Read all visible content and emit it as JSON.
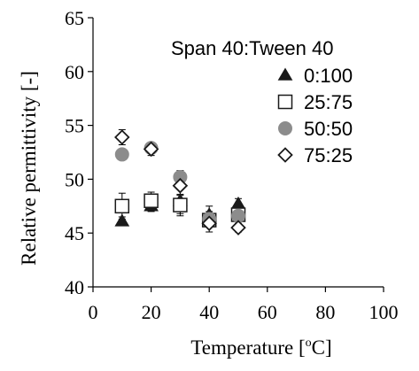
{
  "chart_data": {
    "type": "scatter",
    "xlabel_main": "Temperature [",
    "xlabel_sup": "o",
    "xlabel_end": "C]",
    "ylabel": "Relative permittivity [-]",
    "xlim": [
      0,
      100
    ],
    "ylim": [
      40,
      65
    ],
    "x_ticks": [
      "0",
      "20",
      "40",
      "60",
      "80",
      "100"
    ],
    "y_ticks": [
      "40",
      "45",
      "50",
      "55",
      "60",
      "65"
    ],
    "grid": false,
    "legend_position": "top-right",
    "legend_title": "Span 40:Tween 40",
    "series": [
      {
        "name": "0:100",
        "marker": "triangle",
        "color": "#1a1a1a",
        "x": [
          10,
          20,
          30,
          40,
          50
        ],
        "y": [
          46.1,
          47.5,
          48.0,
          46.7,
          47.7
        ],
        "err": [
          0.4,
          0.5,
          1.2,
          0.8,
          0.5
        ]
      },
      {
        "name": "25:75",
        "marker": "square-open",
        "color": "#1a1a1a",
        "x": [
          10,
          20,
          30,
          40,
          50
        ],
        "y": [
          47.5,
          48.0,
          47.6,
          46.2,
          46.7
        ],
        "err": [
          1.2,
          0.8,
          1.0,
          0.6,
          0.8
        ]
      },
      {
        "name": "50:50",
        "marker": "circle",
        "color": "#8c8c8c",
        "x": [
          10,
          20,
          30,
          40,
          50
        ],
        "y": [
          52.3,
          52.9,
          50.2,
          46.3,
          46.6
        ],
        "err": [
          0.5,
          0.5,
          0.6,
          0.7,
          0.5
        ]
      },
      {
        "name": "75:25",
        "marker": "diamond-open",
        "color": "#1a1a1a",
        "x": [
          10,
          20,
          30,
          40,
          50
        ],
        "y": [
          53.9,
          52.8,
          49.4,
          45.9,
          45.5
        ],
        "err": [
          0.7,
          0.6,
          0.9,
          0.8,
          0.4
        ]
      }
    ]
  }
}
